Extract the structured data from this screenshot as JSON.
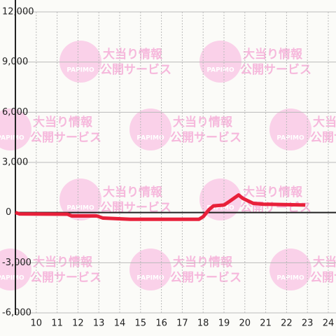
{
  "chart_data": {
    "type": "line",
    "x": [
      9,
      9.2,
      11.5,
      11.7,
      12.9,
      13.2,
      14.5,
      17.8,
      18.0,
      18.3,
      18.5,
      19.0,
      19.3,
      19.7,
      19.9,
      20.4,
      20.9,
      22.9
    ],
    "series": [
      {
        "color": "#e8203a",
        "values": [
          0,
          -80,
          -100,
          -200,
          -200,
          -330,
          -400,
          -400,
          -250,
          200,
          400,
          450,
          700,
          1050,
          850,
          550,
          500,
          450
        ]
      }
    ],
    "xlim": [
      9,
      24.37
    ],
    "xticks": [
      10,
      11,
      12,
      13,
      14,
      15,
      16,
      17,
      18,
      19,
      20,
      21,
      22,
      23,
      24
    ],
    "ylim": [
      -6000,
      12000
    ],
    "yticks": [
      {
        "value": -6000,
        "label": "-6,000"
      },
      {
        "value": -3000,
        "label": "-3,000"
      },
      0,
      {
        "value": 3000,
        "label": "3,000"
      },
      {
        "value": 6000,
        "label": "6,000"
      },
      {
        "value": 9000,
        "label": "9,000"
      },
      {
        "value": 12000,
        "label": "12,000"
      }
    ],
    "grid": true,
    "watermark": {
      "brand": "PAPIMO",
      "line1": "大当り情報",
      "line2": "公開サービス"
    }
  }
}
